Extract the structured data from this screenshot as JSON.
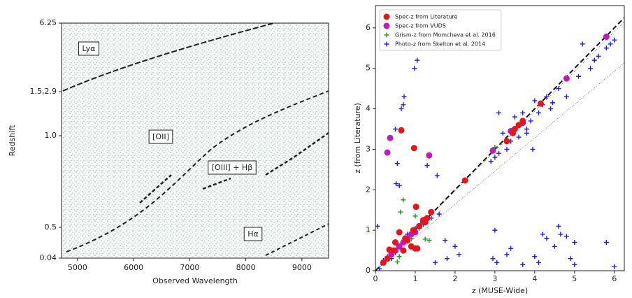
{
  "chart_data": [
    {
      "type": "image",
      "xlabel": "Observed Wavelength",
      "ylabel": "Redshift",
      "xlim": [
        4715,
        9475
      ],
      "xticks": [
        5000,
        6000,
        7000,
        8000,
        9000
      ],
      "ylabels": [
        "6.25",
        "1.5,2.9",
        "1.0",
        "0.5",
        "0.04"
      ],
      "annotations": [
        "Lyα",
        "[OII]",
        "[OIII] + Hβ",
        "Hα"
      ]
    },
    {
      "type": "scatter",
      "xlabel": "z (MUSE-Wide)",
      "ylabel": "z (from Literature)",
      "xlim": [
        0,
        6.25
      ],
      "ylim": [
        0,
        6.55
      ],
      "xticks": [
        0,
        1,
        2,
        3,
        4,
        5,
        6
      ],
      "yticks": [
        0,
        1,
        2,
        3,
        4,
        5,
        6
      ],
      "legend": "upper left",
      "series": [
        {
          "name": "Spec-z from Literature",
          "color": "#e8141a",
          "marker": "o",
          "x": [
            0.65,
            0.97,
            0.35,
            0.5,
            0.6,
            0.7,
            0.8,
            0.9,
            0.95,
            1.0,
            1.05,
            1.02,
            1.1,
            1.2,
            1.3,
            1.4,
            0.3,
            0.2,
            0.45,
            2.25,
            3.3,
            3.45,
            3.5,
            3.6,
            3.7,
            4.15,
            0.75,
            1.25
          ],
          "values": [
            3.47,
            3.03,
            0.52,
            0.7,
            0.95,
            0.5,
            0.75,
            0.6,
            1.0,
            0.55,
            0.55,
            1.58,
            1.1,
            1.25,
            1.3,
            1.45,
            0.3,
            0.2,
            0.5,
            2.23,
            3.2,
            3.4,
            3.5,
            3.6,
            3.7,
            4.13,
            0.8,
            1.2
          ]
        },
        {
          "name": "Spec-z from VUDS",
          "color": "#bf19bf",
          "marker": "o",
          "x": [
            0.3,
            0.37,
            1.35,
            2.95,
            5.8,
            3.4,
            3.7,
            0.5,
            0.6,
            0.7,
            0.8,
            0.9,
            1.0,
            1.1,
            1.2,
            4.8,
            0.4
          ],
          "values": [
            2.92,
            3.28,
            2.85,
            2.97,
            5.78,
            3.45,
            3.65,
            0.5,
            0.6,
            0.7,
            0.8,
            0.9,
            0.95,
            1.1,
            1.2,
            4.75,
            0.4
          ]
        },
        {
          "name": "Grism-z from Momcheva et al. 2016",
          "color": "#1f9a1f",
          "marker": "+",
          "x": [
            0.7,
            0.63,
            1.0,
            1.25,
            1.35,
            0.55,
            0.6,
            0.9,
            1.1,
            3.0
          ],
          "values": [
            1.75,
            1.45,
            1.35,
            0.78,
            0.75,
            0.22,
            0.35,
            0.8,
            1.05,
            3.05
          ]
        },
        {
          "name": "Photo-z from Skelton et al. 2014",
          "color": "#1a1aff",
          "marker": "+",
          "x": [
            0.52,
            0.55,
            0.5,
            0.7,
            0.72,
            0.65,
            0.6,
            0.98,
            1.05,
            1.3,
            1.55,
            2.1,
            1.75,
            1.5,
            1.8,
            2.0,
            0.05,
            3.0,
            2.95,
            3.05,
            3.3,
            3.4,
            3.7,
            4.0,
            4.2,
            4.3,
            4.5,
            4.6,
            4.65,
            4.8,
            4.9,
            5.0,
            5.0,
            5.8,
            6.0,
            4.1,
            3.95,
            3.8,
            3.1,
            5.2,
            5.5,
            5.9,
            4.8,
            4.6,
            5.1,
            5.6,
            4.45,
            4.3,
            4.1,
            3.9,
            3.8,
            3.6,
            3.5,
            3.3,
            3.2,
            3.1,
            3.0,
            2.9,
            3.4,
            3.7,
            4.2,
            4.0,
            4.4,
            5.4,
            5.8,
            6.0,
            0.2,
            0.3,
            0.5,
            0.8,
            1.0,
            1.2,
            1.4,
            1.6,
            0.1,
            0.4
          ],
          "values": [
            2.15,
            2.65,
            3.5,
            4.1,
            4.3,
            4.0,
            2.1,
            5.0,
            5.2,
            2.6,
            2.35,
            0.4,
            0.75,
            0.2,
            0.3,
            0.6,
            1.1,
            1.0,
            0.3,
            0.2,
            0.4,
            0.55,
            0.15,
            0.35,
            0.9,
            0.8,
            0.6,
            1.1,
            0.9,
            0.85,
            0.3,
            0.7,
            0.15,
            0.7,
            0.1,
            0.2,
            3.0,
            3.4,
            3.9,
            5.6,
            5.2,
            5.6,
            4.3,
            4.5,
            4.8,
            5.3,
            4.15,
            4.3,
            3.9,
            3.7,
            3.5,
            3.3,
            3.8,
            3.0,
            3.4,
            2.9,
            2.8,
            2.7,
            3.2,
            3.9,
            4.1,
            4.2,
            4.0,
            5.0,
            5.5,
            5.7,
            0.25,
            0.35,
            0.45,
            0.9,
            1.05,
            1.15,
            1.3,
            1.4,
            0.05,
            0.3
          ]
        }
      ]
    }
  ]
}
